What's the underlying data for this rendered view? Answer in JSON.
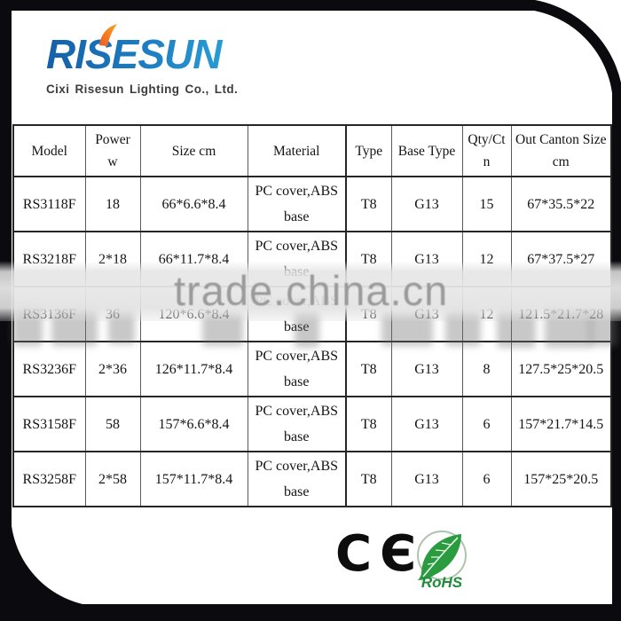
{
  "logo": {
    "brand": "RISESUN",
    "company": "Cixi Risesun Lighting Co., Ltd."
  },
  "watermark": {
    "text": "trade.china.cn"
  },
  "table": {
    "columns": [
      "Model",
      "Power\nw",
      "Size cm",
      "Material",
      "Type",
      "Base Type",
      "Qty/Ct\nn",
      "Out Canton Size\ncm"
    ],
    "rows": [
      [
        "RS3118F",
        "18",
        "66*6.6*8.4",
        "PC cover,ABS\nbase",
        "T8",
        "G13",
        "15",
        "67*35.5*22"
      ],
      [
        "RS3218F",
        "2*18",
        "66*11.7*8.4",
        "PC cover,ABS\nbase",
        "T8",
        "G13",
        "12",
        "67*37.5*27"
      ],
      [
        "RS3136F",
        "36",
        "120*6.6*8.4",
        "PC cover,ABS\nbase",
        "T8",
        "G13",
        "12",
        "121.5*21.7*28"
      ],
      [
        "RS3236F",
        "2*36",
        "126*11.7*8.4",
        "PC cover,ABS\nbase",
        "T8",
        "G13",
        "8",
        "127.5*25*20.5"
      ],
      [
        "RS3158F",
        "58",
        "157*6.6*8.4",
        "PC cover,ABS\nbase",
        "T8",
        "G13",
        "6",
        "157*21.7*14.5"
      ],
      [
        "RS3258F",
        "2*58",
        "157*11.7*8.4",
        "PC cover,ABS\nbase",
        "T8",
        "G13",
        "6",
        "157*25*20.5"
      ]
    ]
  },
  "certifications": {
    "ce_mark": "CЄ",
    "rohs_label": "RoHS"
  },
  "colors": {
    "brand_blue": "#1e7fc2",
    "accent_orange": "#f7941d",
    "rohs_green": "#239b3f",
    "watermark_gray": "#9b9b9b"
  }
}
